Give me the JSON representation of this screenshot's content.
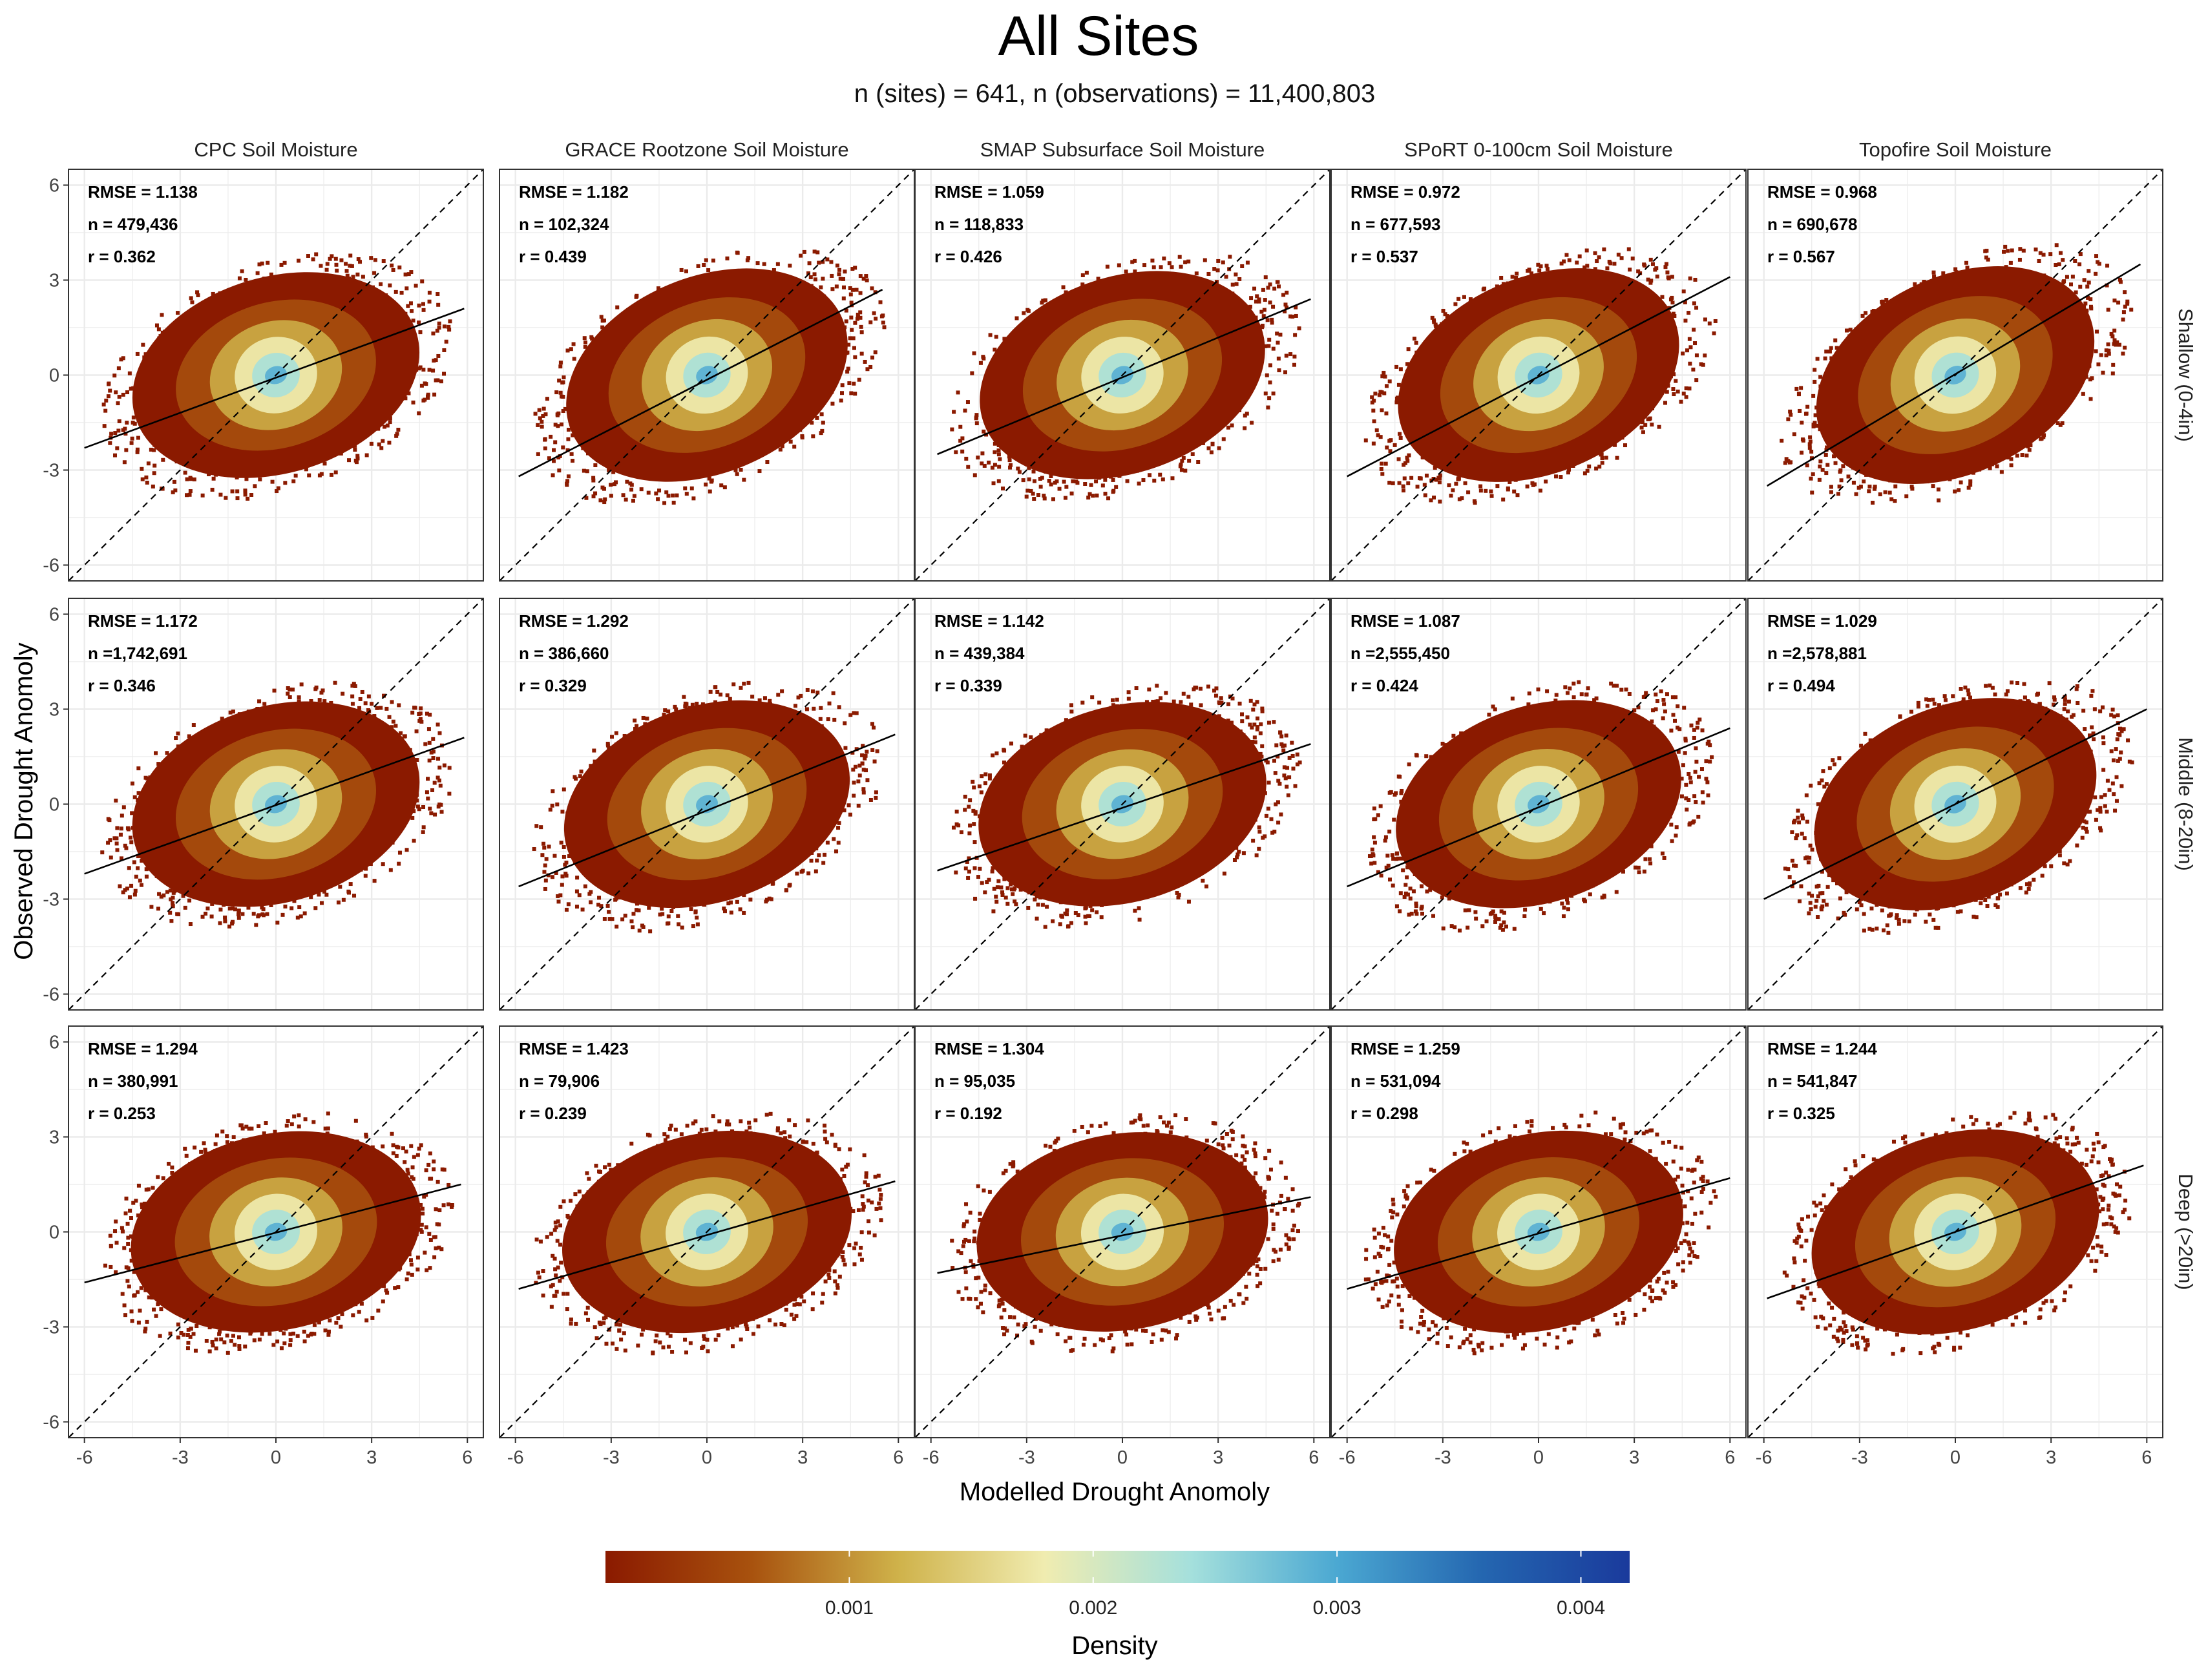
{
  "figure": {
    "title": "All Sites",
    "subtitle": "n (sites) = 641, n (observations) = 11,400,803",
    "xlabel": "Modelled Drought Anomoly",
    "ylabel": "Observed Drought Anomoly",
    "colorbar_title": "Density",
    "colorbar_ticks": [
      "0.001",
      "0.002",
      "0.003",
      "0.004"
    ]
  },
  "colors": {
    "density_scale": [
      "#8b1a00",
      "#a8520e",
      "#cfb24a",
      "#f0ecb0",
      "#a5e0dc",
      "#4ba8d2",
      "#2466b0",
      "#1a3a9c"
    ],
    "regression_line": "#000000",
    "identity_line": "#000000",
    "grid": "#ebebeb"
  },
  "chart_data": {
    "type": "heatmap",
    "xlim": [
      -6.5,
      6.5
    ],
    "ylim": [
      -6.5,
      6.5
    ],
    "x_ticks": [
      -6,
      -3,
      0,
      3,
      6
    ],
    "y_ticks": [
      -6,
      -3,
      0,
      3,
      6
    ],
    "grid": true,
    "legend_placement": "bottom",
    "colorbar_range": [
      0,
      0.0042
    ],
    "columns": [
      "CPC Soil Moisture",
      "GRACE Rootzone Soil Moisture",
      "SMAP Subsurface Soil Moisture",
      "SPoRT 0-100cm Soil Moisture",
      "Topofire Soil Moisture"
    ],
    "rows": [
      "Shallow (0-4in)",
      "Middle (8-20in)",
      "Deep (>20in)"
    ],
    "panels": [
      {
        "row": 0,
        "col": 0,
        "rmse": "RMSE = 1.138",
        "n": "n =  479,436",
        "r": "r = 0.362",
        "fit": {
          "x0": -6,
          "y0": -2.3,
          "x1": 5.9,
          "y1": 2.1
        }
      },
      {
        "row": 0,
        "col": 1,
        "rmse": "RMSE = 1.182",
        "n": "n =  102,324",
        "r": "r = 0.439",
        "fit": {
          "x0": -5.9,
          "y0": -3.2,
          "x1": 5.5,
          "y1": 2.7
        }
      },
      {
        "row": 0,
        "col": 2,
        "rmse": "RMSE = 1.059",
        "n": "n =  118,833",
        "r": "r = 0.426",
        "fit": {
          "x0": -5.8,
          "y0": -2.5,
          "x1": 5.9,
          "y1": 2.4
        }
      },
      {
        "row": 0,
        "col": 3,
        "rmse": "RMSE = 0.972",
        "n": "n =  677,593",
        "r": "r = 0.537",
        "fit": {
          "x0": -6,
          "y0": -3.2,
          "x1": 6,
          "y1": 3.1
        }
      },
      {
        "row": 0,
        "col": 4,
        "rmse": "RMSE = 0.968",
        "n": "n =  690,678",
        "r": "r = 0.567",
        "fit": {
          "x0": -5.9,
          "y0": -3.5,
          "x1": 5.8,
          "y1": 3.5
        }
      },
      {
        "row": 1,
        "col": 0,
        "rmse": "RMSE = 1.172",
        "n": "n =1,742,691",
        "r": "r = 0.346",
        "fit": {
          "x0": -6,
          "y0": -2.2,
          "x1": 5.9,
          "y1": 2.1
        }
      },
      {
        "row": 1,
        "col": 1,
        "rmse": "RMSE = 1.292",
        "n": "n =  386,660",
        "r": "r = 0.329",
        "fit": {
          "x0": -5.9,
          "y0": -2.6,
          "x1": 5.9,
          "y1": 2.2
        }
      },
      {
        "row": 1,
        "col": 2,
        "rmse": "RMSE = 1.142",
        "n": "n =  439,384",
        "r": "r = 0.339",
        "fit": {
          "x0": -5.8,
          "y0": -2.1,
          "x1": 5.9,
          "y1": 1.9
        }
      },
      {
        "row": 1,
        "col": 3,
        "rmse": "RMSE = 1.087",
        "n": "n =2,555,450",
        "r": "r = 0.424",
        "fit": {
          "x0": -6,
          "y0": -2.6,
          "x1": 6,
          "y1": 2.4
        }
      },
      {
        "row": 1,
        "col": 4,
        "rmse": "RMSE = 1.029",
        "n": "n =2,578,881",
        "r": "r = 0.494",
        "fit": {
          "x0": -6,
          "y0": -3,
          "x1": 6,
          "y1": 3
        }
      },
      {
        "row": 2,
        "col": 0,
        "rmse": "RMSE = 1.294",
        "n": "n =  380,991",
        "r": "r = 0.253",
        "fit": {
          "x0": -6,
          "y0": -1.6,
          "x1": 5.8,
          "y1": 1.5
        }
      },
      {
        "row": 2,
        "col": 1,
        "rmse": "RMSE = 1.423",
        "n": "n =   79,906",
        "r": "r = 0.239",
        "fit": {
          "x0": -5.9,
          "y0": -1.8,
          "x1": 5.9,
          "y1": 1.6
        }
      },
      {
        "row": 2,
        "col": 2,
        "rmse": "RMSE = 1.304",
        "n": "n =   95,035",
        "r": "r = 0.192",
        "fit": {
          "x0": -5.8,
          "y0": -1.3,
          "x1": 5.9,
          "y1": 1.1
        }
      },
      {
        "row": 2,
        "col": 3,
        "rmse": "RMSE = 1.259",
        "n": "n =  531,094",
        "r": "r = 0.298",
        "fit": {
          "x0": -6,
          "y0": -1.8,
          "x1": 6,
          "y1": 1.7
        }
      },
      {
        "row": 2,
        "col": 4,
        "rmse": "RMSE = 1.244",
        "n": "n =  541,847",
        "r": "r = 0.325",
        "fit": {
          "x0": -5.9,
          "y0": -2.1,
          "x1": 5.9,
          "y1": 2.1
        }
      }
    ]
  }
}
